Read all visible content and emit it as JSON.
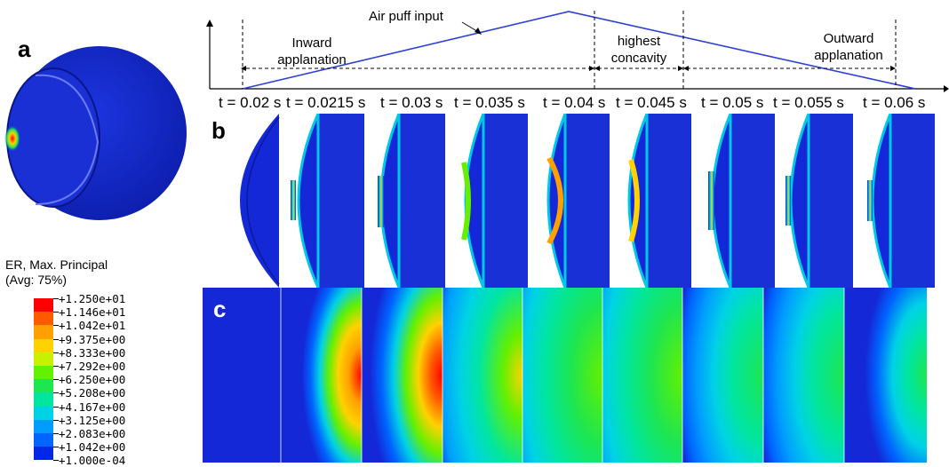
{
  "panels": {
    "a": "a",
    "b": "b",
    "c": "c"
  },
  "timeline": {
    "input_label": "Air puff input",
    "phases": [
      {
        "text": "Inward\napplanation"
      },
      {
        "text": "highest\nconcavity"
      },
      {
        "text": "Outward\napplanation"
      }
    ],
    "times": [
      "t = 0.02 s",
      "t = 0.0215 s",
      "t = 0.03 s",
      "t = 0.035 s",
      "t = 0.04 s",
      "t = 0.045 s",
      "t = 0.05 s",
      "t = 0.055 s",
      "t = 0.06 s"
    ]
  },
  "legend": {
    "title_line1": "ER, Max. Principal",
    "title_line2": "(Avg: 75%)",
    "values": [
      "+1.250e+01",
      "+1.146e+01",
      "+1.042e+01",
      "+9.375e+00",
      "+8.333e+00",
      "+7.292e+00",
      "+6.250e+00",
      "+5.208e+00",
      "+4.167e+00",
      "+3.125e+00",
      "+2.083e+00",
      "+1.042e+00",
      "+1.000e-04"
    ],
    "colors": [
      "#ff0000",
      "#ff5a00",
      "#ffa000",
      "#ffd200",
      "#c8f000",
      "#64f000",
      "#1ee650",
      "#00e6a0",
      "#00d2e6",
      "#009cff",
      "#0064ff",
      "#0028e6"
    ]
  },
  "colors": {
    "eye_blue": "#1428d8",
    "deep_blue": "#0a1cb4",
    "timeline_line": "#2c3fd6"
  }
}
